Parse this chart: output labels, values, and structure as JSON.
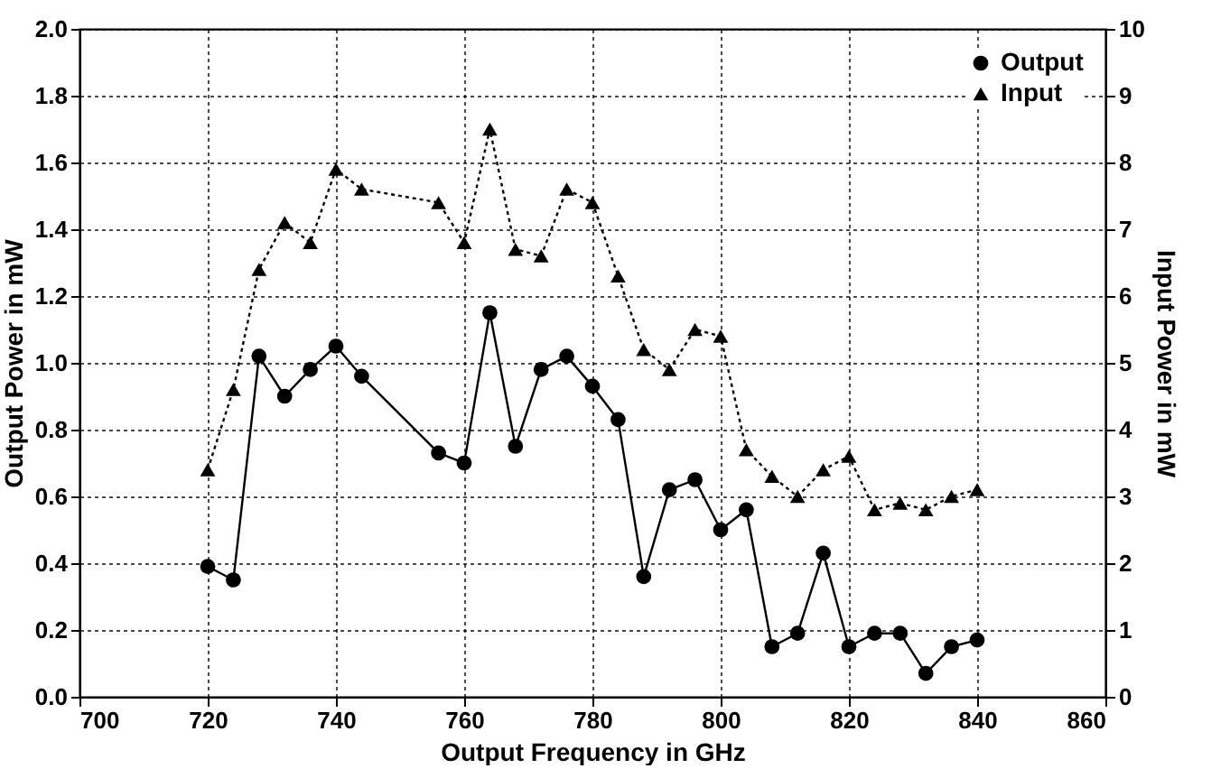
{
  "chart_data": {
    "type": "line",
    "xlabel": "Output Frequency in GHz",
    "ylabel": "Output Power in mW",
    "y2label": "Input Power in mW",
    "x": [
      720,
      724,
      728,
      732,
      736,
      740,
      744,
      756,
      760,
      764,
      768,
      772,
      776,
      780,
      784,
      788,
      792,
      796,
      800,
      804,
      808,
      812,
      816,
      820,
      824,
      828,
      832,
      836,
      840
    ],
    "series": [
      {
        "name": "Output",
        "color": "#000000",
        "marker": "circle",
        "line_style": "solid",
        "values": [
          0.39,
          0.35,
          1.02,
          0.9,
          0.98,
          1.05,
          0.96,
          0.73,
          0.7,
          1.15,
          0.75,
          0.98,
          1.02,
          0.93,
          0.83,
          0.36,
          0.62,
          0.65,
          0.5,
          0.56,
          0.15,
          0.19,
          0.43,
          0.15,
          0.19,
          0.19,
          0.07,
          0.15,
          0.17
        ]
      },
      {
        "name": "Input",
        "color": "#000000",
        "marker": "triangle",
        "line_style": "dotted",
        "axis": "y2",
        "values": [
          3.4,
          4.6,
          6.4,
          7.1,
          6.8,
          7.9,
          7.6,
          7.4,
          6.8,
          8.5,
          6.7,
          6.6,
          7.6,
          7.4,
          6.3,
          5.2,
          4.9,
          5.5,
          5.4,
          3.7,
          3.3,
          3.0,
          3.4,
          3.6,
          2.8,
          2.9,
          2.8,
          3.0,
          3.1
        ]
      }
    ],
    "xlim": [
      700,
      860
    ],
    "xticks": [
      700,
      720,
      740,
      760,
      780,
      800,
      820,
      840,
      860
    ],
    "ylim": [
      0,
      2.0
    ],
    "yticks": [
      {
        "value": 0,
        "label": "0.0"
      },
      {
        "value": 0.2,
        "label": "0.2"
      },
      {
        "value": 0.4,
        "label": "0.4"
      },
      {
        "value": 0.6,
        "label": "0.6"
      },
      {
        "value": 0.8,
        "label": "0.8"
      },
      {
        "value": 1,
        "label": "1.0"
      },
      {
        "value": 1.2,
        "label": "1.2"
      },
      {
        "value": 1.4,
        "label": "1.4"
      },
      {
        "value": 1.6,
        "label": "1.6"
      },
      {
        "value": 1.8,
        "label": "1.8"
      },
      {
        "value": 2,
        "label": "2.0"
      }
    ],
    "y2lim": [
      0,
      10
    ],
    "y2ticks": [
      0,
      1,
      2,
      3,
      4,
      5,
      6,
      7,
      8,
      9,
      10
    ],
    "grid": true,
    "legend": "top right"
  }
}
